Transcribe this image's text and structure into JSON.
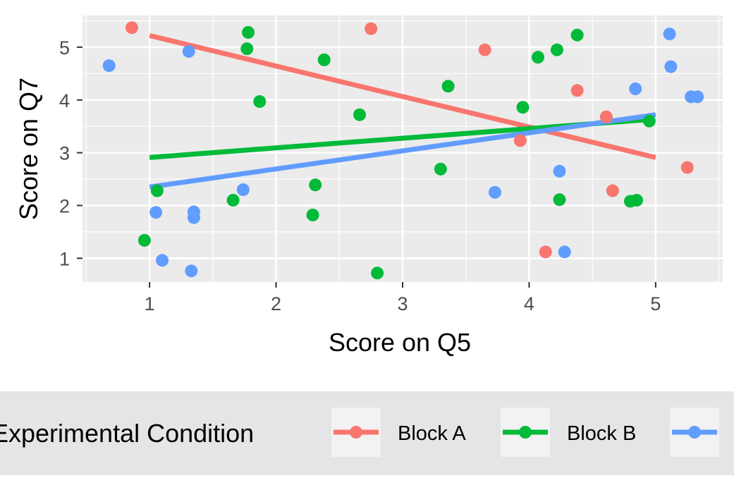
{
  "chart_data": {
    "type": "scatter",
    "title": "",
    "xlabel": "Score on Q5",
    "ylabel": "Score on Q7",
    "xlim": [
      0.47,
      5.53
    ],
    "ylim": [
      0.55,
      5.6
    ],
    "x_ticks": [
      1,
      2,
      3,
      4,
      5
    ],
    "y_ticks": [
      1,
      2,
      3,
      4,
      5
    ],
    "grid": true,
    "legend": {
      "title": "Experimental Condition",
      "position": "bottom"
    },
    "series": [
      {
        "name": "Block A",
        "color": "#F8766D",
        "points": [
          {
            "x": 0.86,
            "y": 5.37
          },
          {
            "x": 2.75,
            "y": 5.35
          },
          {
            "x": 3.65,
            "y": 4.95
          },
          {
            "x": 4.38,
            "y": 4.18
          },
          {
            "x": 4.61,
            "y": 3.68
          },
          {
            "x": 3.93,
            "y": 3.23
          },
          {
            "x": 5.25,
            "y": 2.72
          },
          {
            "x": 4.66,
            "y": 2.28
          },
          {
            "x": 4.13,
            "y": 1.12
          }
        ],
        "fit": {
          "x": [
            1,
            5
          ],
          "y": [
            5.22,
            2.91
          ]
        }
      },
      {
        "name": "Block B",
        "color": "#00BA38",
        "points": [
          {
            "x": 1.78,
            "y": 5.28
          },
          {
            "x": 1.77,
            "y": 4.97
          },
          {
            "x": 2.38,
            "y": 4.76
          },
          {
            "x": 1.87,
            "y": 3.97
          },
          {
            "x": 2.66,
            "y": 3.72
          },
          {
            "x": 3.36,
            "y": 4.26
          },
          {
            "x": 3.95,
            "y": 3.86
          },
          {
            "x": 4.07,
            "y": 4.81
          },
          {
            "x": 4.22,
            "y": 4.95
          },
          {
            "x": 4.38,
            "y": 5.23
          },
          {
            "x": 4.95,
            "y": 3.6
          },
          {
            "x": 3.3,
            "y": 2.69
          },
          {
            "x": 2.31,
            "y": 2.39
          },
          {
            "x": 2.29,
            "y": 1.82
          },
          {
            "x": 1.66,
            "y": 2.1
          },
          {
            "x": 1.06,
            "y": 2.28
          },
          {
            "x": 0.96,
            "y": 1.34
          },
          {
            "x": 2.8,
            "y": 0.72
          },
          {
            "x": 4.24,
            "y": 2.11
          },
          {
            "x": 4.8,
            "y": 2.08
          },
          {
            "x": 4.85,
            "y": 2.1
          }
        ],
        "fit": {
          "x": [
            1,
            4.95
          ],
          "y": [
            2.91,
            3.63
          ]
        }
      },
      {
        "name": "",
        "color": "#619CFF",
        "points": [
          {
            "x": 0.68,
            "y": 4.65
          },
          {
            "x": 1.31,
            "y": 4.92
          },
          {
            "x": 1.05,
            "y": 1.87
          },
          {
            "x": 1.1,
            "y": 0.96
          },
          {
            "x": 1.33,
            "y": 0.76
          },
          {
            "x": 1.35,
            "y": 1.88
          },
          {
            "x": 1.35,
            "y": 1.77
          },
          {
            "x": 1.74,
            "y": 2.3
          },
          {
            "x": 3.73,
            "y": 2.25
          },
          {
            "x": 4.24,
            "y": 2.65
          },
          {
            "x": 4.28,
            "y": 1.12
          },
          {
            "x": 4.84,
            "y": 4.21
          },
          {
            "x": 5.11,
            "y": 5.25
          },
          {
            "x": 5.12,
            "y": 4.63
          },
          {
            "x": 5.28,
            "y": 4.06
          },
          {
            "x": 5.33,
            "y": 4.06
          }
        ],
        "fit": {
          "x": [
            1,
            5
          ],
          "y": [
            2.35,
            3.72
          ]
        }
      }
    ]
  }
}
